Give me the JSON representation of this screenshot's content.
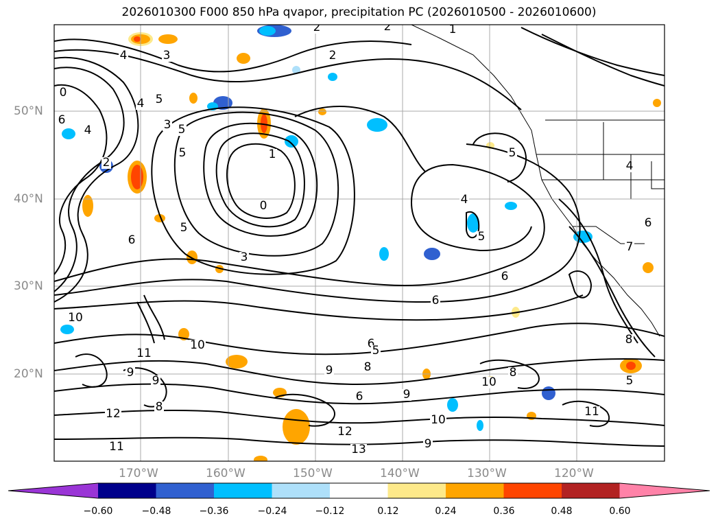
{
  "title": "2026010300 F000 850 hPa qvapor, precipitation PC (2026010500 - 2026010600)",
  "latitude_labels": [
    "50°N",
    "40°N",
    "30°N",
    "20°N"
  ],
  "longitude_labels": [
    "170°W",
    "160°W",
    "150°W",
    "140°W",
    "130°W",
    "120°W"
  ],
  "colorbar": {
    "ticks": [
      "−0.60",
      "−0.48",
      "−0.36",
      "−0.24",
      "−0.12",
      "0.12",
      "0.24",
      "0.36",
      "0.48",
      "0.60"
    ],
    "colors": [
      "#9a35d6",
      "#00008b",
      "#3060d0",
      "#00bfff",
      "#aee0fa",
      "#ffffff",
      "#fde98a",
      "#ffa500",
      "#ff4500",
      "#b22222",
      "#ff82a8"
    ]
  },
  "contour_labels": [
    "4",
    "3",
    "2",
    "2",
    "1",
    "2",
    "0",
    "4",
    "5",
    "3",
    "6",
    "4",
    "5",
    "2",
    "1",
    "0",
    "5",
    "3",
    "5",
    "6",
    "5",
    "4",
    "4",
    "5",
    "6",
    "6",
    "7",
    "10",
    "8",
    "11",
    "9",
    "10",
    "9",
    "8",
    "9",
    "12",
    "13",
    "6",
    "5",
    "8",
    "9",
    "6",
    "11",
    "10",
    "10",
    "12",
    "11",
    "9",
    "8",
    "6",
    "5"
  ],
  "precip_colors": {
    "orange": "#ffa500",
    "red": "#ff4500",
    "yellow": "#fde98a",
    "light_blue": "#aee0fa",
    "blue": "#00bfff",
    "dark_blue": "#3060d0"
  }
}
